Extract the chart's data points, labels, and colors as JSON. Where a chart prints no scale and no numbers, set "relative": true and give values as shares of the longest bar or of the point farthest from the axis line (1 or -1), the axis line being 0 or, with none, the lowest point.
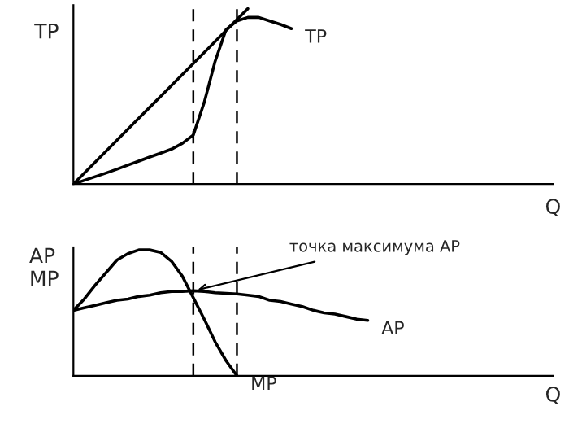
{
  "chart_data": [
    {
      "type": "line",
      "relative": true,
      "ylabel": "TP",
      "xlabel": "Q",
      "marker": "none",
      "categories": [
        null,
        null,
        null,
        null,
        null,
        null,
        null,
        null,
        null,
        null,
        null,
        null,
        null,
        null,
        null,
        null,
        null,
        null,
        null,
        null,
        null,
        null,
        null,
        null,
        null,
        null,
        null,
        null,
        null,
        null,
        null,
        null,
        null,
        null,
        null,
        null,
        null,
        null,
        null,
        null,
        null,
        null,
        null,
        null,
        null
      ],
      "series": [
        {
          "name": "TP",
          "color": "#000000",
          "values": [
            0,
            0.021,
            0.042,
            0.063,
            0.085,
            0.108,
            0.131,
            0.154,
            0.176,
            0.199,
            0.232,
            0.28,
            0.465,
            0.7,
            0.88,
            0.93,
            0.95,
            0.95,
            0.93,
            0.91,
            0.886,
            null,
            null,
            null,
            null,
            null,
            null,
            null,
            null,
            null,
            null,
            null,
            null,
            null,
            null,
            null,
            null,
            null,
            null,
            null,
            null,
            null,
            null,
            null,
            null
          ]
        },
        {
          "color": "#000000",
          "values": [
            0,
            0.0625,
            0.125,
            0.1875,
            0.25,
            0.3125,
            0.375,
            0.4375,
            0.5,
            0.5625,
            0.625,
            0.6875,
            0.75,
            0.8125,
            0.875,
            0.9375,
            1,
            null,
            null,
            null,
            null,
            null,
            null,
            null,
            null,
            null,
            null,
            null,
            null,
            null,
            null,
            null,
            null,
            null,
            null,
            null,
            null,
            null,
            null,
            null,
            null,
            null,
            null,
            null,
            null
          ]
        }
      ]
    },
    {
      "type": "line",
      "relative": true,
      "ylabel": "AP\nMP",
      "xlabel": "Q",
      "marker": "none",
      "categories": [
        null,
        null,
        null,
        null,
        null,
        null,
        null,
        null,
        null,
        null,
        null,
        null,
        null,
        null,
        null,
        null,
        null,
        null,
        null,
        null,
        null,
        null,
        null,
        null,
        null,
        null,
        null,
        null,
        null,
        null,
        null,
        null,
        null,
        null,
        null,
        null,
        null,
        null,
        null,
        null,
        null,
        null,
        null,
        null,
        null
      ],
      "series": [
        {
          "name": "MP",
          "color": "#000000",
          "values": [
            0.52,
            0.61,
            0.72,
            0.82,
            0.92,
            0.97,
            1,
            1,
            0.98,
            0.91,
            0.79,
            0.62,
            0.45,
            0.27,
            0.12,
            0,
            null,
            null,
            null,
            null,
            null,
            null,
            null,
            null,
            null,
            null,
            null,
            null,
            null,
            null,
            null,
            null,
            null,
            null,
            null,
            null,
            null,
            null,
            null,
            null,
            null,
            null,
            null,
            null,
            null
          ]
        },
        {
          "name": "AP",
          "color": "#000000",
          "values": [
            0.52,
            0.54,
            0.56,
            0.58,
            0.6,
            0.61,
            0.63,
            0.64,
            0.66,
            0.67,
            0.67,
            0.675,
            0.67,
            0.66,
            0.655,
            0.65,
            0.64,
            0.63,
            0.6,
            0.59,
            0.57,
            0.55,
            0.52,
            0.5,
            0.49,
            0.47,
            0.45,
            0.44,
            null,
            null,
            null,
            null,
            null,
            null,
            null,
            null,
            null,
            null,
            null,
            null,
            null,
            null,
            null,
            null,
            null
          ]
        }
      ],
      "annotations": [
        "точка максимума AP"
      ]
    }
  ]
}
